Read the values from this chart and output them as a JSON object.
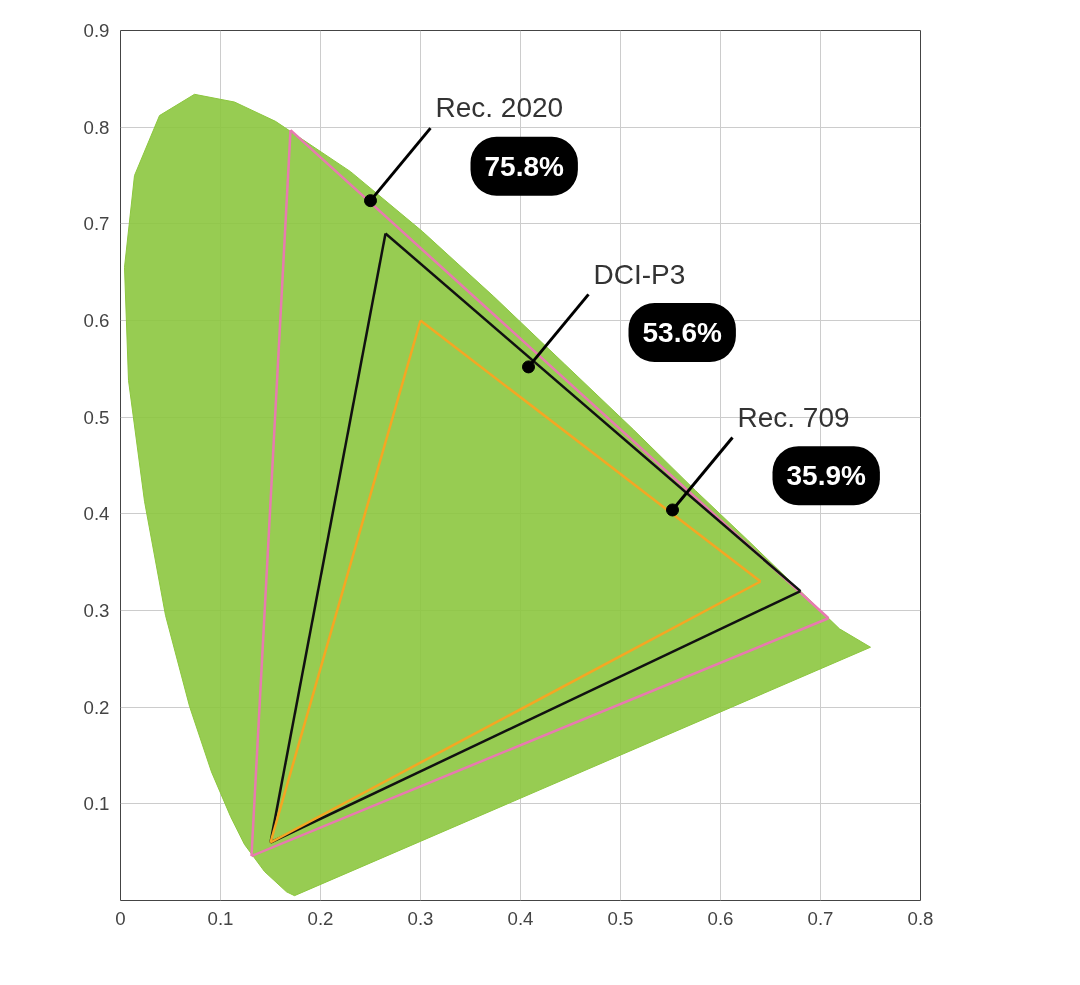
{
  "chart_data": {
    "type": "line",
    "xlim": [
      0,
      0.8
    ],
    "ylim": [
      0,
      0.9
    ],
    "xticks": [
      0,
      0.1,
      0.2,
      0.3,
      0.4,
      0.5,
      0.6,
      0.7,
      0.8
    ],
    "yticks": [
      {
        "value": 0,
        "label": null
      },
      0.1,
      0.2,
      0.3,
      0.4,
      0.5,
      0.6,
      0.7,
      0.8,
      0.9
    ],
    "grid": true,
    "marker": "none",
    "line_style": "solid",
    "series": [
      {
        "type": "area",
        "color": "#8cc63f",
        "x": [
          0.174,
          0.166,
          0.144,
          0.124,
          0.11,
          0.091,
          0.069,
          0.045,
          0.024,
          0.008,
          0.004,
          0.014,
          0.039,
          0.074,
          0.114,
          0.155,
          0.23,
          0.302,
          0.373,
          0.444,
          0.513,
          0.575,
          0.627,
          0.666,
          0.692,
          0.719,
          0.75,
          0.174
        ],
        "values": [
          0.005,
          0.009,
          0.03,
          0.058,
          0.087,
          0.133,
          0.201,
          0.295,
          0.413,
          0.538,
          0.655,
          0.75,
          0.812,
          0.834,
          0.826,
          0.806,
          0.754,
          0.692,
          0.625,
          0.555,
          0.487,
          0.424,
          0.373,
          0.334,
          0.308,
          0.281,
          0.262,
          0.005
        ]
      },
      {
        "color": "#e87ab0",
        "x": [
          0.17,
          0.708
        ],
        "values": [
          0.797,
          0.292
        ]
      },
      {
        "color": "#e87ab0",
        "x": [
          0.131,
          0.17
        ],
        "values": [
          0.046,
          0.797
        ]
      },
      {
        "color": "#e87ab0",
        "x": [
          0.131,
          0.708
        ],
        "values": [
          0.046,
          0.292
        ]
      },
      {
        "color": "#111111",
        "x": [
          0.265,
          0.68
        ],
        "values": [
          0.69,
          0.32
        ]
      },
      {
        "color": "#111111",
        "x": [
          0.15,
          0.265
        ],
        "values": [
          0.06,
          0.69
        ]
      },
      {
        "color": "#111111",
        "x": [
          0.15,
          0.68
        ],
        "values": [
          0.06,
          0.32
        ]
      },
      {
        "color": "#f5a623",
        "x": [
          0.3,
          0.64
        ],
        "values": [
          0.6,
          0.33
        ]
      },
      {
        "color": "#f5a623",
        "x": [
          0.15,
          0.3
        ],
        "values": [
          0.06,
          0.6
        ]
      },
      {
        "color": "#f5a623",
        "x": [
          0.15,
          0.64
        ],
        "values": [
          0.06,
          0.33
        ]
      }
    ],
    "annotations": [
      {
        "text": "Rec. 2020",
        "x": 0.25,
        "y": 0.724
      },
      {
        "text": "DCI-P3",
        "x": 0.408,
        "y": 0.552
      },
      {
        "text": "Rec. 709",
        "x": 0.552,
        "y": 0.404
      },
      "75.8%",
      "53.6%",
      "35.9%"
    ]
  }
}
